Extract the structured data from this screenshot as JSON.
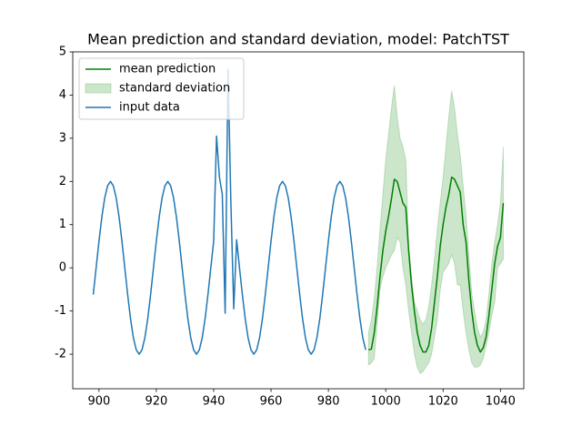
{
  "chart_data": {
    "type": "line",
    "title": "Mean prediction and standard deviation, model: PatchTST",
    "xlim": [
      890.85,
      1048.15
    ],
    "xticks": [
      900,
      920,
      940,
      960,
      980,
      1000,
      1020,
      1040
    ],
    "ylim": [
      -2.8,
      5.0
    ],
    "yticks": [
      -2,
      -1,
      0,
      1,
      2,
      3,
      4,
      5
    ],
    "grid": false,
    "legend": "upper left",
    "series": [
      {
        "name": "mean prediction",
        "color": "#008000",
        "x": [
          994,
          995,
          996,
          997,
          998,
          999,
          1000,
          1001,
          1002,
          1003,
          1004,
          1005,
          1006,
          1007,
          1008,
          1009,
          1010,
          1011,
          1012,
          1013,
          1014,
          1015,
          1016,
          1017,
          1018,
          1019,
          1020,
          1021,
          1022,
          1023,
          1024,
          1025,
          1026,
          1027,
          1028,
          1029,
          1030,
          1031,
          1032,
          1033,
          1034,
          1035,
          1036,
          1037,
          1038,
          1039,
          1040,
          1041
        ],
        "values": [
          -1.9,
          -1.88,
          -1.5,
          -0.9,
          -0.2,
          0.4,
          0.85,
          1.2,
          1.6,
          2.05,
          2.0,
          1.75,
          1.5,
          1.4,
          0.4,
          -0.4,
          -1.0,
          -1.5,
          -1.8,
          -1.95,
          -1.95,
          -1.8,
          -1.4,
          -0.8,
          -0.2,
          0.5,
          1.0,
          1.4,
          1.7,
          2.1,
          2.05,
          1.9,
          1.75,
          1.0,
          0.6,
          -0.3,
          -1.0,
          -1.5,
          -1.8,
          -1.95,
          -1.85,
          -1.6,
          -1.1,
          -0.5,
          0.1,
          0.5,
          0.7,
          1.5
        ]
      },
      {
        "name": "standard deviation",
        "type": "band",
        "color": "#008000",
        "x": [
          994,
          995,
          996,
          997,
          998,
          999,
          1000,
          1001,
          1002,
          1003,
          1004,
          1005,
          1006,
          1007,
          1008,
          1009,
          1010,
          1011,
          1012,
          1013,
          1014,
          1015,
          1016,
          1017,
          1018,
          1019,
          1020,
          1021,
          1022,
          1023,
          1024,
          1025,
          1026,
          1027,
          1028,
          1029,
          1030,
          1031,
          1032,
          1033,
          1034,
          1035,
          1036,
          1037,
          1038,
          1039,
          1040,
          1041
        ],
        "lower": [
          -2.25,
          -2.2,
          -2.1,
          -1.3,
          -0.5,
          -0.2,
          0.0,
          0.15,
          0.3,
          0.4,
          0.7,
          0.6,
          0.0,
          -0.4,
          -1.0,
          -1.5,
          -2.0,
          -2.3,
          -2.45,
          -2.4,
          -2.3,
          -2.2,
          -2.0,
          -1.6,
          -1.2,
          -0.5,
          -0.1,
          0.0,
          0.1,
          0.3,
          0.1,
          -0.4,
          -0.4,
          -1.0,
          -1.5,
          -1.9,
          -2.2,
          -2.3,
          -2.3,
          -2.25,
          -2.1,
          -1.8,
          -1.5,
          -1.1,
          -0.8,
          0.0,
          0.1,
          0.2
        ],
        "upper": [
          -1.5,
          -1.2,
          -0.7,
          0.0,
          0.9,
          1.7,
          2.5,
          3.1,
          3.7,
          4.22,
          3.5,
          3.0,
          2.8,
          2.5,
          0.5,
          -0.2,
          -0.8,
          -1.0,
          -1.2,
          -1.3,
          -1.2,
          -0.9,
          -0.4,
          0.2,
          0.9,
          1.5,
          2.1,
          2.8,
          3.5,
          4.1,
          3.7,
          3.1,
          2.6,
          1.9,
          1.2,
          0.3,
          -0.6,
          -1.0,
          -1.4,
          -1.6,
          -1.5,
          -1.2,
          -0.6,
          0.1,
          0.6,
          1.0,
          1.5,
          2.8
        ]
      },
      {
        "name": "input data",
        "color": "#1f77b4",
        "x": [
          898,
          899,
          900,
          901,
          902,
          903,
          904,
          905,
          906,
          907,
          908,
          909,
          910,
          911,
          912,
          913,
          914,
          915,
          916,
          917,
          918,
          919,
          920,
          921,
          922,
          923,
          924,
          925,
          926,
          927,
          928,
          929,
          930,
          931,
          932,
          933,
          934,
          935,
          936,
          937,
          938,
          939,
          940,
          941,
          942,
          943,
          944,
          945,
          946,
          947,
          948,
          949,
          950,
          951,
          952,
          953,
          954,
          955,
          956,
          957,
          958,
          959,
          960,
          961,
          962,
          963,
          964,
          965,
          966,
          967,
          968,
          969,
          970,
          971,
          972,
          973,
          974,
          975,
          976,
          977,
          978,
          979,
          980,
          981,
          982,
          983,
          984,
          985,
          986,
          987,
          988,
          989,
          990,
          991,
          992,
          993
        ],
        "values": [
          -0.62,
          0,
          0.62,
          1.18,
          1.62,
          1.9,
          2,
          1.9,
          1.62,
          1.18,
          0.62,
          0,
          -0.62,
          -1.18,
          -1.62,
          -1.9,
          -2,
          -1.9,
          -1.62,
          -1.18,
          -0.62,
          0,
          0.62,
          1.18,
          1.62,
          1.9,
          2,
          1.9,
          1.62,
          1.18,
          0.62,
          0,
          -0.62,
          -1.18,
          -1.62,
          -1.9,
          -2,
          -1.9,
          -1.62,
          -1.18,
          -0.62,
          0,
          0.62,
          3.05,
          2.1,
          1.7,
          -1.05,
          4.6,
          1.5,
          -0.95,
          0.65,
          0,
          -0.62,
          -1.18,
          -1.62,
          -1.9,
          -2,
          -1.9,
          -1.62,
          -1.18,
          -0.62,
          0,
          0.62,
          1.18,
          1.62,
          1.9,
          2,
          1.9,
          1.62,
          1.18,
          0.62,
          0,
          -0.62,
          -1.18,
          -1.62,
          -1.9,
          -2,
          -1.9,
          -1.62,
          -1.18,
          -0.62,
          0,
          0.62,
          1.18,
          1.62,
          1.9,
          2,
          1.9,
          1.62,
          1.18,
          0.62,
          0,
          -0.62,
          -1.18,
          -1.62,
          -1.9
        ]
      }
    ]
  }
}
